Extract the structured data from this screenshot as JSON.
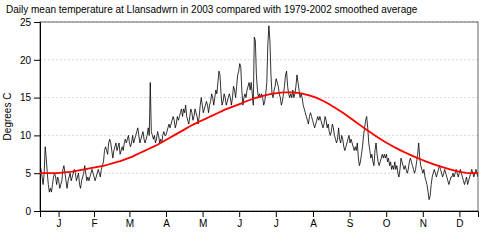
{
  "chart_data": {
    "type": "line",
    "title": "Daily mean temperature at Llansadwrn in 2003 compared with 1979-2002 smoothed average",
    "y_label": "Degrees C",
    "xlim": [
      0,
      365
    ],
    "xticks": [
      {
        "value": 15.5,
        "label": "J"
      },
      {
        "value": 45,
        "label": "F"
      },
      {
        "value": 74.5,
        "label": "M"
      },
      {
        "value": 105,
        "label": "A"
      },
      {
        "value": 135.5,
        "label": "M"
      },
      {
        "value": 166,
        "label": "J"
      },
      {
        "value": 196.5,
        "label": "J"
      },
      {
        "value": 227.5,
        "label": "A"
      },
      {
        "value": 258,
        "label": "S"
      },
      {
        "value": 288.5,
        "label": "O"
      },
      {
        "value": 319,
        "label": "N"
      },
      {
        "value": 349.5,
        "label": "D"
      }
    ],
    "ylim": [
      0,
      25
    ],
    "yticks": [
      0,
      5,
      10,
      15,
      20,
      25
    ],
    "grid": true,
    "series": [
      {
        "color": "#000000",
        "values": [
          6.0,
          5.5,
          4.5,
          3.5,
          5.0,
          8.5,
          7.0,
          5.0,
          3.5,
          2.5,
          3.0,
          2.5,
          3.5,
          4.5,
          5.0,
          4.5,
          3.5,
          4.5,
          4.0,
          3.0,
          3.5,
          4.0,
          5.5,
          6.0,
          5.0,
          4.0,
          3.0,
          4.0,
          4.5,
          5.0,
          4.0,
          4.5,
          5.0,
          5.5,
          5.0,
          4.0,
          4.5,
          5.0,
          3.5,
          3.0,
          4.0,
          4.5,
          5.0,
          6.0,
          5.0,
          4.0,
          4.5,
          4.0,
          4.5,
          5.0,
          5.5,
          5.0,
          4.5,
          4.0,
          4.5,
          5.0,
          5.5,
          5.0,
          4.5,
          5.5,
          6.0,
          6.5,
          8.0,
          8.5,
          8.0,
          7.5,
          9.0,
          9.5,
          9.0,
          8.0,
          7.0,
          8.0,
          8.5,
          9.0,
          8.0,
          8.5,
          9.0,
          7.5,
          8.0,
          8.5,
          8.0,
          9.0,
          9.5,
          9.0,
          9.5,
          10.0,
          9.0,
          8.5,
          9.0,
          10.0,
          9.0,
          9.5,
          10.0,
          10.5,
          11.0,
          10.0,
          9.0,
          9.5,
          10.0,
          10.5,
          9.5,
          9.0,
          9.5,
          10.0,
          11.0,
          10.0,
          17.0,
          10.5,
          10.0,
          9.5,
          10.0,
          9.0,
          9.5,
          10.5,
          10.0,
          9.0,
          9.5,
          9.0,
          10.0,
          10.5,
          10.0,
          10.0,
          10.5,
          11.0,
          11.5,
          11.0,
          11.5,
          12.0,
          12.5,
          12.0,
          11.0,
          11.5,
          12.5,
          12.0,
          12.5,
          13.0,
          13.5,
          12.5,
          13.5,
          13.0,
          14.0,
          12.5,
          12.0,
          11.5,
          12.5,
          13.5,
          13.0,
          12.0,
          12.5,
          13.5,
          13.0,
          12.5,
          11.5,
          12.5,
          14.0,
          15.0,
          14.0,
          13.0,
          13.5,
          14.0,
          14.5,
          14.0,
          13.0,
          14.0,
          14.5,
          15.5,
          15.0,
          14.0,
          15.0,
          16.0,
          15.5,
          17.0,
          18.5,
          18.0,
          15.5,
          14.0,
          14.5,
          15.5,
          15.0,
          14.0,
          14.5,
          15.0,
          15.5,
          15.0,
          14.0,
          15.0,
          16.5,
          16.0,
          15.0,
          16.5,
          18.0,
          18.5,
          19.5,
          19.0,
          16.0,
          14.0,
          15.0,
          15.5,
          15.0,
          16.0,
          16.5,
          17.0,
          16.0,
          17.0,
          15.5,
          14.0,
          23.0,
          22.5,
          18.0,
          16.0,
          15.0,
          15.5,
          15.0,
          15.5,
          15.0,
          14.0,
          14.5,
          15.5,
          17.0,
          22.0,
          24.5,
          22.5,
          18.0,
          15.5,
          15.0,
          16.0,
          16.5,
          17.5,
          17.0,
          16.5,
          15.5,
          15.0,
          14.0,
          14.5,
          15.5,
          16.5,
          18.0,
          18.5,
          16.5,
          15.5,
          15.0,
          15.5,
          15.0,
          16.0,
          15.0,
          15.5,
          16.5,
          18.0,
          17.0,
          16.0,
          15.0,
          15.5,
          15.0,
          14.0,
          13.5,
          13.0,
          12.5,
          12.0,
          11.5,
          12.5,
          13.0,
          12.5,
          12.0,
          11.5,
          11.0,
          11.5,
          12.0,
          12.5,
          12.0,
          12.5,
          12.0,
          11.5,
          11.0,
          11.5,
          12.5,
          12.0,
          11.0,
          11.5,
          10.5,
          10.0,
          10.5,
          11.5,
          11.0,
          10.0,
          9.5,
          9.0,
          9.5,
          11.0,
          9.5,
          9.0,
          10.0,
          9.5,
          8.5,
          8.0,
          8.5,
          9.0,
          9.5,
          10.0,
          9.0,
          9.5,
          9.0,
          8.5,
          8.0,
          8.5,
          8.0,
          9.0,
          7.0,
          6.0,
          6.5,
          7.5,
          8.5,
          10.0,
          11.0,
          12.0,
          12.5,
          11.0,
          9.0,
          8.0,
          7.0,
          7.5,
          6.5,
          6.0,
          8.0,
          9.0,
          7.5,
          6.5,
          6.0,
          6.5,
          7.0,
          7.5,
          7.0,
          7.5,
          7.0,
          7.5,
          6.5,
          7.0,
          6.0,
          6.5,
          5.5,
          6.0,
          5.5,
          6.5,
          5.5,
          6.0,
          5.0,
          4.5,
          5.5,
          7.0,
          6.5,
          6.0,
          5.5,
          6.0,
          5.5,
          5.0,
          5.5,
          6.5,
          7.0,
          6.5,
          6.0,
          5.5,
          5.0,
          5.5,
          6.5,
          7.5,
          9.0,
          7.0,
          6.0,
          5.5,
          5.0,
          5.5,
          4.5,
          4.0,
          3.5,
          2.5,
          1.5,
          2.0,
          3.5,
          4.5,
          5.0,
          5.5,
          5.0,
          4.5,
          5.0,
          5.5,
          6.0,
          5.5,
          5.0,
          4.5,
          5.0,
          5.5,
          5.0,
          4.5,
          4.0,
          3.5,
          4.0,
          4.5,
          4.5,
          5.0,
          4.5,
          5.0,
          5.5,
          5.0,
          4.5,
          5.0,
          5.5,
          5.0,
          4.5,
          4.0,
          3.5,
          4.0,
          4.5,
          3.5,
          4.0,
          4.5,
          5.0,
          5.5,
          5.0,
          4.5,
          5.0,
          5.5,
          5.0,
          4.5
        ]
      },
      {
        "color": "#ff0000",
        "values": [
          5.0,
          5.0,
          5.0,
          5.0,
          5.0,
          5.05,
          5.1,
          5.15,
          5.2,
          5.3,
          5.4,
          5.5,
          5.6,
          5.7,
          5.8,
          5.9,
          6.0,
          6.15,
          6.3,
          6.45,
          6.6,
          6.8,
          7.0,
          7.2,
          7.45,
          7.7,
          7.95,
          8.2,
          8.45,
          8.7,
          9.0,
          9.3,
          9.6,
          9.9,
          10.2,
          10.5,
          10.8,
          11.1,
          11.4,
          11.65,
          11.9,
          12.15,
          12.4,
          12.65,
          12.9,
          13.15,
          13.4,
          13.6,
          13.8,
          14.0,
          14.2,
          14.45,
          14.65,
          14.85,
          15.0,
          15.15,
          15.3,
          15.42,
          15.52,
          15.6,
          15.65,
          15.68,
          15.7,
          15.68,
          15.63,
          15.55,
          15.44,
          15.3,
          15.12,
          14.92,
          14.68,
          14.42,
          14.12,
          13.8,
          13.47,
          13.12,
          12.76,
          12.38,
          12.0,
          11.62,
          11.23,
          10.85,
          10.48,
          10.12,
          9.77,
          9.43,
          9.1,
          8.8,
          8.5,
          8.22,
          7.95,
          7.7,
          7.46,
          7.23,
          7.0,
          6.78,
          6.57,
          6.37,
          6.18,
          6.0,
          5.83,
          5.67,
          5.52,
          5.38,
          5.25,
          5.14,
          5.05,
          5.0,
          5.0,
          5.0
        ]
      }
    ]
  }
}
